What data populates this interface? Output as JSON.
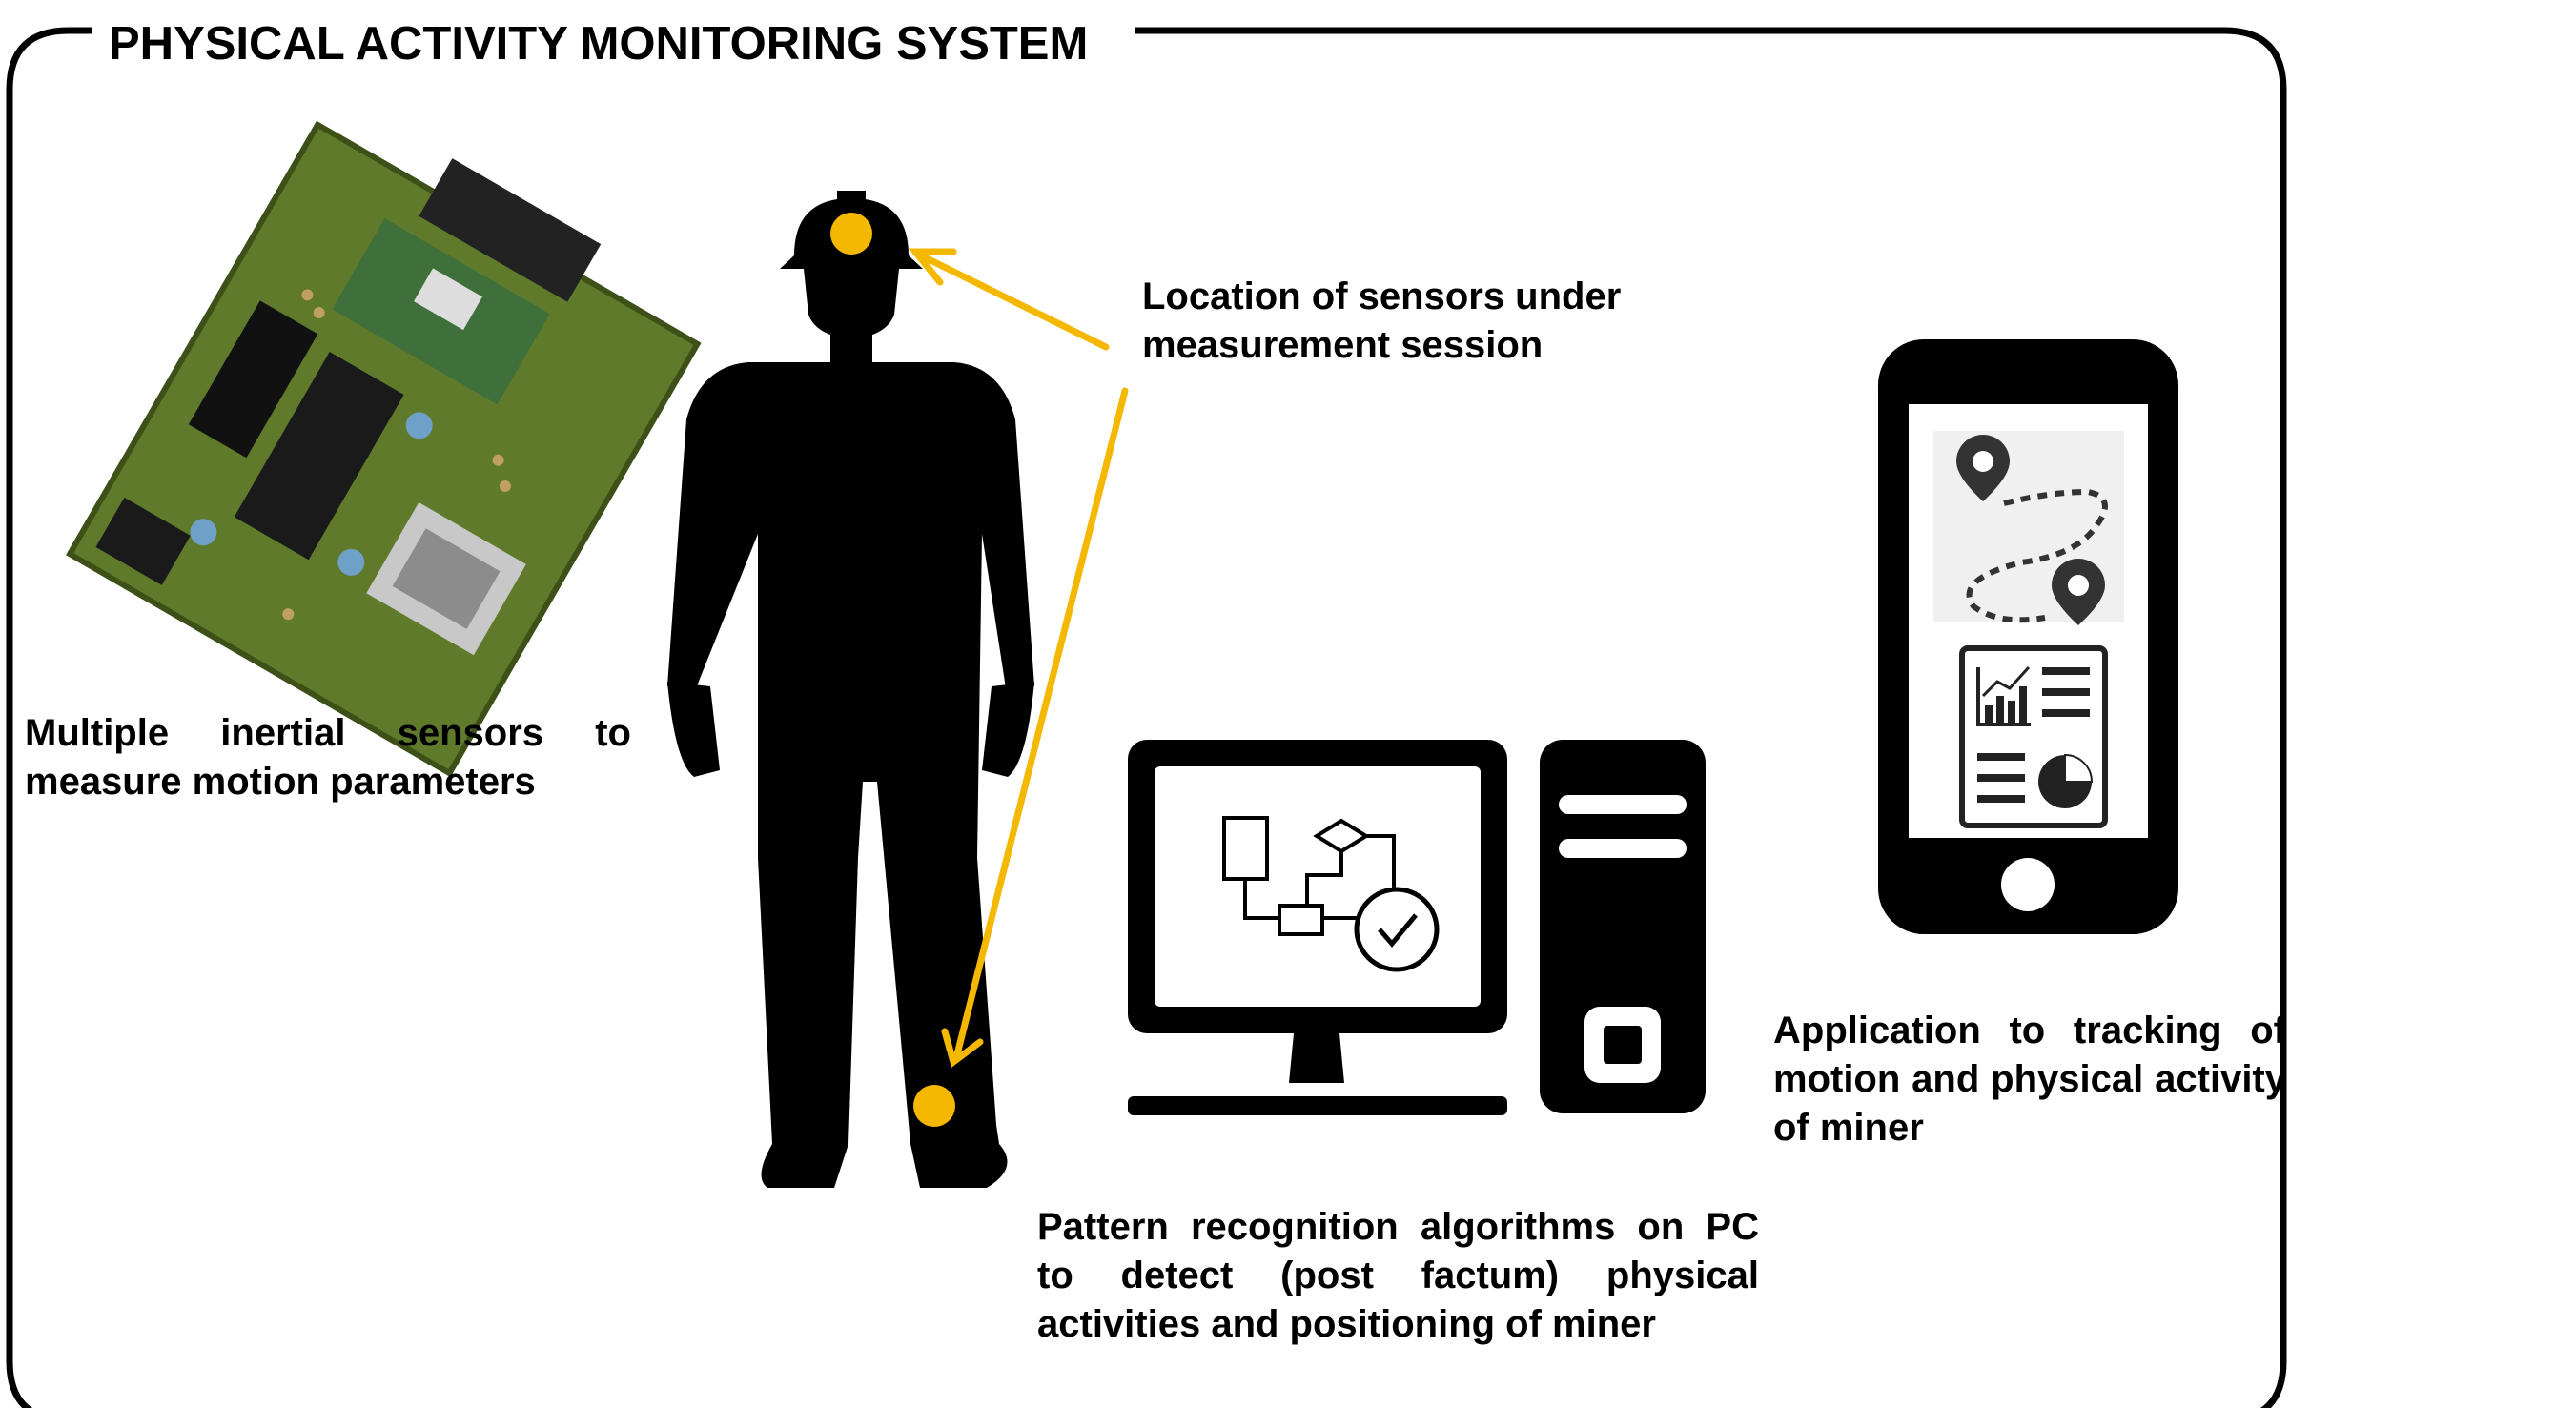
{
  "title": "PHYSICAL ACTIVITY MONITORING SYSTEM",
  "labels": {
    "sensors": "Multiple inertial sensors to measure motion parameters",
    "location": "Location of sensors under measurement session",
    "algorithms": "Pattern recognition algorithms on PC to detect (post factum) physical activities and positioning of miner",
    "app": "Application to tracking of motion and physical activity of miner"
  },
  "colors": {
    "accent": "#f5b800",
    "ink": "#000000",
    "board_green": "#5e7a2a"
  },
  "icons": [
    "circuit-board-image",
    "miner-silhouette-icon",
    "desktop-computer-icon",
    "smartphone-icon",
    "map-pin-icon",
    "report-chart-icon",
    "flowchart-icon",
    "checkmark-icon"
  ]
}
